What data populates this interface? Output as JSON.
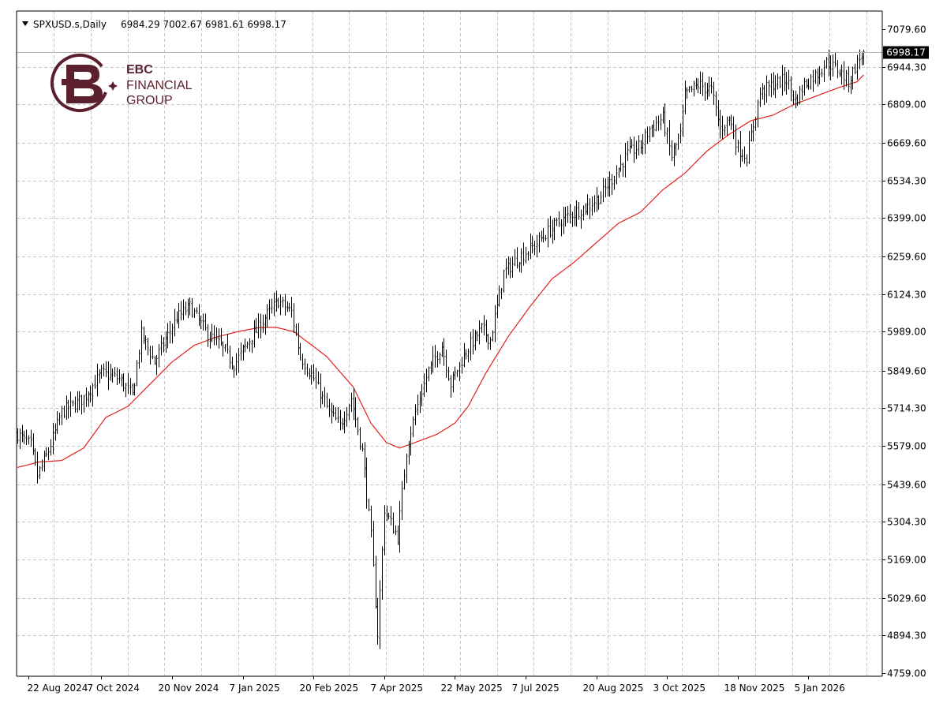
{
  "header": {
    "symbol": "SPXUSD.s,Daily",
    "ohlc": "6984.29 7002.67 6981.61 6998.17"
  },
  "logo": {
    "brand": "EBC",
    "line2": "FINANCIAL",
    "line3": "GROUP"
  },
  "current_price_label": "6998.17",
  "colors": {
    "bars": "#000000",
    "ma": "#e0201e",
    "grid": "#c8c8c8",
    "logo": "#5b1f2d"
  },
  "icons": {
    "dropdown": "triangle-down-icon"
  },
  "chart_data": {
    "type": "ohlc-bar",
    "symbol": "SPXUSD.s",
    "timeframe": "Daily",
    "y_ticks": [
      "7079.60",
      "6944.30",
      "6809.00",
      "6669.60",
      "6534.30",
      "6399.00",
      "6259.60",
      "6124.30",
      "5989.00",
      "5849.60",
      "5714.30",
      "5579.00",
      "5439.60",
      "5304.30",
      "5169.00",
      "5029.60",
      "4894.30",
      "4759.00"
    ],
    "x_ticks": [
      "22 Aug 2024",
      "7 Oct 2024",
      "20 Nov 2024",
      "7 Jan 2025",
      "20 Feb 2025",
      "7 Apr 2025",
      "22 May 2025",
      "7 Jul 2025",
      "20 Aug 2025",
      "3 Oct 2025",
      "18 Nov 2025",
      "5 Jan 2026"
    ],
    "ylim": [
      4759,
      7079.6
    ],
    "last_close": 6998.17,
    "close_path": [
      [
        0,
        5620
      ],
      [
        6,
        5580
      ],
      [
        9,
        5470
      ],
      [
        14,
        5560
      ],
      [
        20,
        5700
      ],
      [
        30,
        5750
      ],
      [
        38,
        5840
      ],
      [
        46,
        5820
      ],
      [
        52,
        5760
      ],
      [
        56,
        5980
      ],
      [
        62,
        5880
      ],
      [
        72,
        6040
      ],
      [
        78,
        6080
      ],
      [
        86,
        5980
      ],
      [
        92,
        5940
      ],
      [
        98,
        5870
      ],
      [
        105,
        5960
      ],
      [
        112,
        6040
      ],
      [
        118,
        6100
      ],
      [
        124,
        6060
      ],
      [
        128,
        5900
      ],
      [
        134,
        5820
      ],
      [
        141,
        5700
      ],
      [
        146,
        5650
      ],
      [
        151,
        5750
      ],
      [
        156,
        5560
      ],
      [
        160,
        5250
      ],
      [
        163,
        4900
      ],
      [
        166,
        5350
      ],
      [
        172,
        5250
      ],
      [
        176,
        5560
      ],
      [
        180,
        5700
      ],
      [
        186,
        5850
      ],
      [
        192,
        5940
      ],
      [
        196,
        5800
      ],
      [
        203,
        5920
      ],
      [
        210,
        6000
      ],
      [
        214,
        5960
      ],
      [
        220,
        6200
      ],
      [
        226,
        6250
      ],
      [
        234,
        6300
      ],
      [
        240,
        6350
      ],
      [
        246,
        6390
      ],
      [
        252,
        6420
      ],
      [
        258,
        6440
      ],
      [
        264,
        6480
      ],
      [
        270,
        6550
      ],
      [
        276,
        6630
      ],
      [
        282,
        6660
      ],
      [
        286,
        6720
      ],
      [
        292,
        6760
      ],
      [
        296,
        6620
      ],
      [
        300,
        6700
      ],
      [
        302,
        6840
      ],
      [
        308,
        6880
      ],
      [
        314,
        6860
      ],
      [
        318,
        6720
      ],
      [
        322,
        6760
      ],
      [
        326,
        6650
      ],
      [
        330,
        6620
      ],
      [
        336,
        6850
      ],
      [
        342,
        6880
      ],
      [
        348,
        6900
      ],
      [
        352,
        6820
      ],
      [
        356,
        6880
      ],
      [
        362,
        6920
      ],
      [
        366,
        6960
      ],
      [
        372,
        6930
      ],
      [
        376,
        6890
      ],
      [
        380,
        6960
      ],
      [
        383,
        6998.17
      ]
    ],
    "ma_path": [
      [
        0,
        5500
      ],
      [
        10,
        5520
      ],
      [
        20,
        5525
      ],
      [
        30,
        5570
      ],
      [
        40,
        5680
      ],
      [
        50,
        5720
      ],
      [
        60,
        5800
      ],
      [
        70,
        5880
      ],
      [
        80,
        5940
      ],
      [
        90,
        5970
      ],
      [
        100,
        5990
      ],
      [
        110,
        6005
      ],
      [
        117,
        6005
      ],
      [
        125,
        5990
      ],
      [
        140,
        5900
      ],
      [
        152,
        5790
      ],
      [
        160,
        5660
      ],
      [
        167,
        5590
      ],
      [
        173,
        5570
      ],
      [
        180,
        5590
      ],
      [
        190,
        5620
      ],
      [
        198,
        5660
      ],
      [
        204,
        5720
      ],
      [
        212,
        5840
      ],
      [
        222,
        5970
      ],
      [
        232,
        6080
      ],
      [
        242,
        6180
      ],
      [
        252,
        6240
      ],
      [
        262,
        6310
      ],
      [
        272,
        6380
      ],
      [
        282,
        6420
      ],
      [
        292,
        6500
      ],
      [
        302,
        6560
      ],
      [
        312,
        6640
      ],
      [
        322,
        6700
      ],
      [
        332,
        6750
      ],
      [
        342,
        6770
      ],
      [
        352,
        6810
      ],
      [
        362,
        6840
      ],
      [
        372,
        6870
      ],
      [
        380,
        6890
      ],
      [
        383,
        6915
      ]
    ],
    "bar_count": 384,
    "x_tick_bar_index": [
      5,
      38,
      70,
      102,
      134,
      166,
      198,
      230,
      262,
      294,
      326,
      358
    ]
  }
}
